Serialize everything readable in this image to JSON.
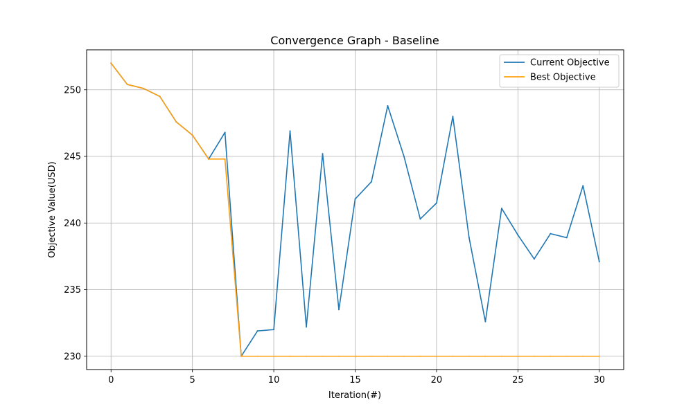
{
  "chart_data": {
    "type": "line",
    "title": "Convergence Graph - Baseline",
    "xlabel": "Iteration(#)",
    "ylabel": "Objective Value(USD)",
    "xlim": [
      -1.5,
      31.5
    ],
    "ylim": [
      229,
      253
    ],
    "xticks": [
      0,
      5,
      10,
      15,
      20,
      25,
      30
    ],
    "yticks": [
      230,
      235,
      240,
      245,
      250
    ],
    "grid": true,
    "legend_position": "top-right",
    "x": [
      0,
      1,
      2,
      3,
      4,
      5,
      6,
      7,
      8,
      9,
      10,
      11,
      12,
      13,
      14,
      15,
      16,
      17,
      18,
      19,
      20,
      21,
      22,
      23,
      24,
      25,
      26,
      27,
      28,
      29,
      30
    ],
    "series": [
      {
        "name": "Current Objective",
        "color": "#1f77b4",
        "values": [
          252.0,
          250.4,
          250.1,
          249.5,
          247.6,
          246.6,
          244.8,
          246.8,
          230.0,
          231.9,
          232.0,
          246.9,
          232.2,
          245.2,
          233.5,
          241.8,
          243.1,
          248.8,
          245.0,
          240.3,
          241.5,
          248.0,
          238.9,
          232.6,
          241.1,
          239.1,
          237.3,
          239.2,
          238.9,
          242.8,
          237.1
        ]
      },
      {
        "name": "Best Objective",
        "color": "#ff9f0e",
        "values": [
          252.0,
          250.4,
          250.1,
          249.5,
          247.6,
          246.6,
          244.8,
          244.8,
          230.0,
          230.0,
          230.0,
          230.0,
          230.0,
          230.0,
          230.0,
          230.0,
          230.0,
          230.0,
          230.0,
          230.0,
          230.0,
          230.0,
          230.0,
          230.0,
          230.0,
          230.0,
          230.0,
          230.0,
          230.0,
          230.0,
          230.0
        ]
      }
    ]
  }
}
